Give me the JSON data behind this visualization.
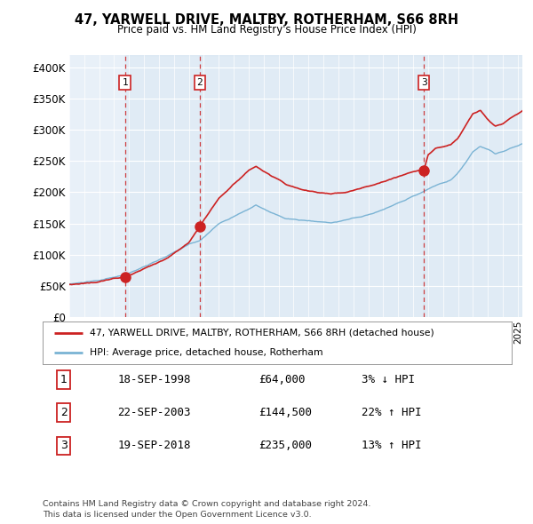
{
  "title": "47, YARWELL DRIVE, MALTBY, ROTHERHAM, S66 8RH",
  "subtitle": "Price paid vs. HM Land Registry's House Price Index (HPI)",
  "ylim": [
    0,
    420000
  ],
  "yticks": [
    0,
    50000,
    100000,
    150000,
    200000,
    250000,
    300000,
    350000,
    400000
  ],
  "ytick_labels": [
    "£0",
    "£50K",
    "£100K",
    "£150K",
    "£200K",
    "£250K",
    "£300K",
    "£350K",
    "£400K"
  ],
  "xlim_start": 1995.0,
  "xlim_end": 2025.3,
  "sale_dates": [
    1998.72,
    2003.72,
    2018.72
  ],
  "sale_prices": [
    64000,
    144500,
    235000
  ],
  "sale_labels": [
    "1",
    "2",
    "3"
  ],
  "hpi_line_color": "#7ab3d4",
  "sale_line_color": "#cc2222",
  "sale_dot_color": "#cc2222",
  "vline_color": "#cc2222",
  "shade_color": "#ddeeff",
  "legend_entry1": "47, YARWELL DRIVE, MALTBY, ROTHERHAM, S66 8RH (detached house)",
  "legend_entry2": "HPI: Average price, detached house, Rotherham",
  "table_data": [
    [
      "1",
      "18-SEP-1998",
      "£64,000",
      "3% ↓ HPI"
    ],
    [
      "2",
      "22-SEP-2003",
      "£144,500",
      "22% ↑ HPI"
    ],
    [
      "3",
      "19-SEP-2018",
      "£235,000",
      "13% ↑ HPI"
    ]
  ],
  "footer": "Contains HM Land Registry data © Crown copyright and database right 2024.\nThis data is licensed under the Open Government Licence v3.0.",
  "background_color": "#ffffff",
  "plot_bg_color": "#e8f0f8"
}
